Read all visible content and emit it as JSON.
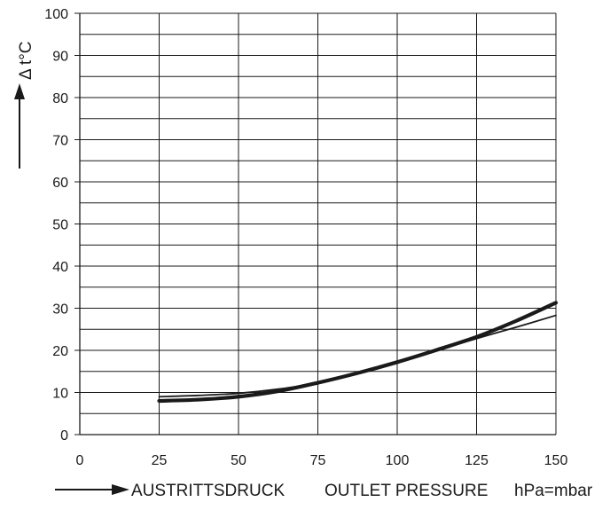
{
  "chart_data": {
    "type": "line",
    "title": "",
    "ylabel": "Δ t°C",
    "xlabel": {
      "de": "AUSTRITTSDRUCK",
      "en": "OUTLET PRESSURE",
      "unit": "hPa=mbar"
    },
    "xlim": [
      0,
      150
    ],
    "ylim": [
      0,
      100
    ],
    "x_ticks": [
      0,
      25,
      50,
      75,
      100,
      125,
      150
    ],
    "y_ticks": [
      0,
      10,
      20,
      30,
      40,
      50,
      60,
      70,
      80,
      90,
      100
    ],
    "grid": true,
    "legend": "none",
    "series": [
      {
        "style": "thick",
        "x": [
          25,
          37.5,
          50,
          62.5,
          75,
          87.5,
          100,
          112.5,
          125,
          137.5,
          150
        ],
        "y": [
          8,
          8.3,
          9,
          10.3,
          12.3,
          14.6,
          17.2,
          20.1,
          23.2,
          27,
          31.3
        ]
      },
      {
        "style": "thin",
        "x": [
          25,
          37.5,
          50,
          62.5,
          75,
          87.5,
          100,
          112.5,
          125,
          137.5,
          150
        ],
        "y": [
          9,
          9.3,
          9.8,
          10.8,
          12.3,
          14.6,
          17.2,
          20,
          22.8,
          25.5,
          28.3
        ]
      }
    ]
  }
}
